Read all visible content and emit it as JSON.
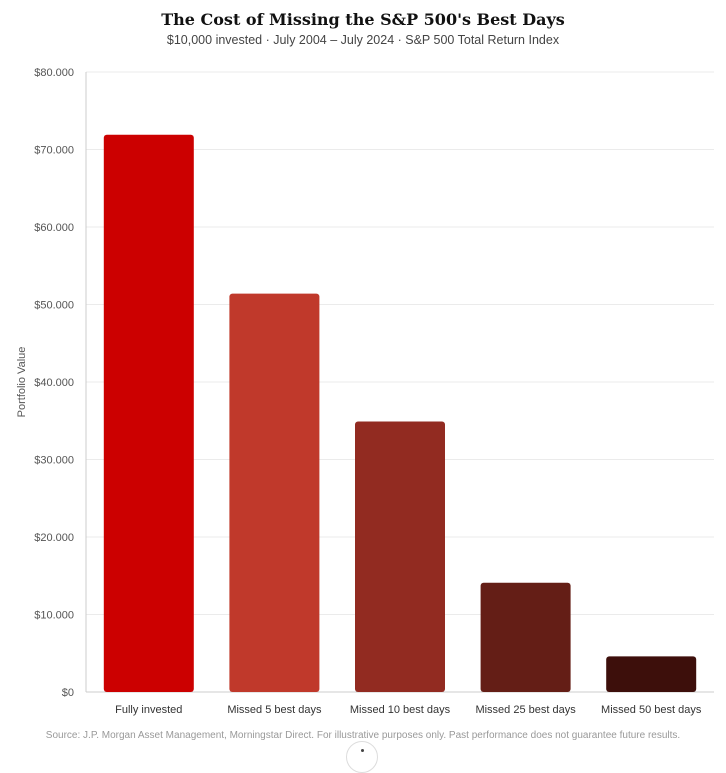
{
  "chart_data": {
    "type": "bar",
    "title": "The Cost of Missing the S&P 500's Best Days",
    "subtitle": "$10,000 invested · July 2004 – July 2024 · S&P 500 Total Return Index",
    "ylabel": "Portfolio Value",
    "xlabel": "",
    "categories": [
      "Fully invested",
      "Missed 5 best days",
      "Missed 10 best days",
      "Missed 25 best days",
      "Missed 50 best days"
    ],
    "values": [
      71900,
      51400,
      34900,
      14100,
      4600
    ],
    "colors": [
      "#cc0000",
      "#c0392b",
      "#922b21",
      "#641e16",
      "#3d0f0b"
    ],
    "ylim": [
      0,
      80000
    ],
    "yticks": [
      0,
      10000,
      20000,
      30000,
      40000,
      50000,
      60000,
      70000,
      80000
    ],
    "ytick_labels": [
      "$0",
      "$10.000",
      "$20.000",
      "$30.000",
      "$40.000",
      "$50.000",
      "$60.000",
      "$70.000",
      "$80.000"
    ],
    "grid": true,
    "legend": "none",
    "source": "Source: J.P. Morgan Asset Management, Morningstar Direct. For illustrative purposes only. Past performance does not guarantee future results."
  }
}
